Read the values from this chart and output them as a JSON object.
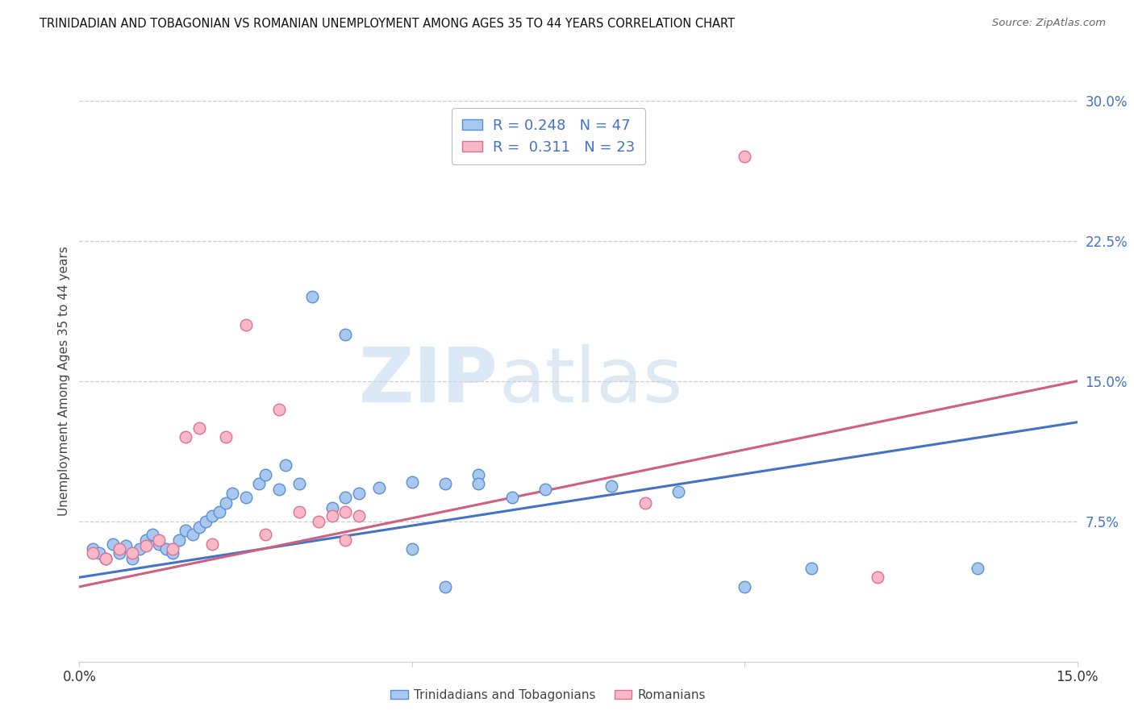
{
  "title": "TRINIDADIAN AND TOBAGONIAN VS ROMANIAN UNEMPLOYMENT AMONG AGES 35 TO 44 YEARS CORRELATION CHART",
  "source": "Source: ZipAtlas.com",
  "ylabel": "Unemployment Among Ages 35 to 44 years",
  "xlim": [
    0.0,
    0.15
  ],
  "ylim": [
    0.0,
    0.3
  ],
  "yticks": [
    0.075,
    0.15,
    0.225,
    0.3
  ],
  "ytick_labels": [
    "7.5%",
    "15.0%",
    "22.5%",
    "30.0%"
  ],
  "background_color": "#ffffff",
  "watermark_zip": "ZIP",
  "watermark_atlas": "atlas",
  "legend_r1": "0.248",
  "legend_n1": "47",
  "legend_r2": "0.311",
  "legend_n2": "23",
  "tt_face_color": "#A8C8F0",
  "tt_edge_color": "#5B8FD0",
  "ro_face_color": "#F8B8C8",
  "ro_edge_color": "#E07090",
  "tt_line_color": "#4472C4",
  "ro_line_color": "#D06080",
  "tt_trendline": [
    0.045,
    0.128
  ],
  "ro_trendline": [
    0.04,
    0.15
  ],
  "trinidadian_x": [
    0.002,
    0.003,
    0.004,
    0.005,
    0.006,
    0.007,
    0.008,
    0.009,
    0.01,
    0.011,
    0.012,
    0.013,
    0.014,
    0.015,
    0.016,
    0.017,
    0.018,
    0.019,
    0.02,
    0.021,
    0.022,
    0.023,
    0.025,
    0.027,
    0.028,
    0.03,
    0.031,
    0.033,
    0.035,
    0.038,
    0.04,
    0.042,
    0.045,
    0.05,
    0.055,
    0.06,
    0.065,
    0.07,
    0.08,
    0.09,
    0.1,
    0.11,
    0.135,
    0.04,
    0.05,
    0.055,
    0.06
  ],
  "trinidadian_y": [
    0.06,
    0.058,
    0.055,
    0.063,
    0.058,
    0.062,
    0.055,
    0.06,
    0.065,
    0.068,
    0.063,
    0.06,
    0.058,
    0.065,
    0.07,
    0.068,
    0.072,
    0.075,
    0.078,
    0.08,
    0.085,
    0.09,
    0.088,
    0.095,
    0.1,
    0.092,
    0.105,
    0.095,
    0.195,
    0.082,
    0.088,
    0.09,
    0.093,
    0.096,
    0.095,
    0.1,
    0.088,
    0.092,
    0.094,
    0.091,
    0.04,
    0.05,
    0.05,
    0.175,
    0.06,
    0.04,
    0.095
  ],
  "romanian_x": [
    0.002,
    0.004,
    0.006,
    0.008,
    0.01,
    0.012,
    0.014,
    0.016,
    0.018,
    0.02,
    0.022,
    0.025,
    0.028,
    0.03,
    0.033,
    0.036,
    0.038,
    0.04,
    0.04,
    0.042,
    0.085,
    0.1,
    0.12
  ],
  "romanian_y": [
    0.058,
    0.055,
    0.06,
    0.058,
    0.062,
    0.065,
    0.06,
    0.12,
    0.125,
    0.063,
    0.12,
    0.18,
    0.068,
    0.135,
    0.08,
    0.075,
    0.078,
    0.08,
    0.065,
    0.078,
    0.085,
    0.27,
    0.045
  ]
}
